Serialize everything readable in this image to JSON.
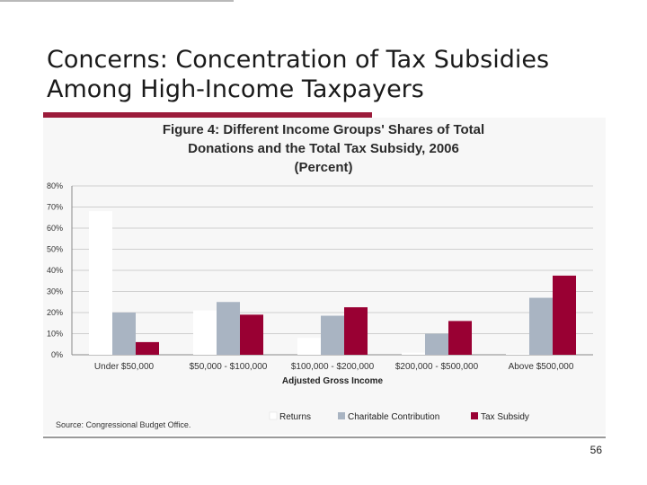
{
  "slide": {
    "title": "Concerns: Concentration of Tax Subsidies\nAmong High-Income Taxpayers",
    "page_number": "56",
    "accent_color": "#9b1b3a"
  },
  "chart_data": {
    "type": "bar",
    "title_lines": [
      "Figure 4: Different Income Groups' Shares of Total",
      "Donations and the Total Tax Subsidy, 2006",
      "(Percent)"
    ],
    "categories": [
      "Under $50,000",
      "$50,000 - $100,000",
      "$100,000 - $200,000",
      "$200,000 - $500,000",
      "Above $500,000"
    ],
    "series": [
      {
        "name": "Returns",
        "color": "#ffffff",
        "values": [
          68,
          21,
          8,
          1,
          0.5
        ]
      },
      {
        "name": "Charitable Contribution",
        "color": "#a9b4c2",
        "values": [
          20,
          25,
          18.5,
          10,
          27
        ]
      },
      {
        "name": "Tax Subsidy",
        "color": "#990033",
        "values": [
          6,
          19,
          22.5,
          16,
          37.5
        ]
      }
    ],
    "xlabel": "Adjusted Gross Income",
    "ylabel": "",
    "ylim": [
      0,
      80
    ],
    "yticks": [
      "0%",
      "10%",
      "20%",
      "30%",
      "40%",
      "50%",
      "60%",
      "70%",
      "80%"
    ],
    "grid": true,
    "legend_position": "bottom",
    "source": "Source: Congressional Budget Office."
  }
}
